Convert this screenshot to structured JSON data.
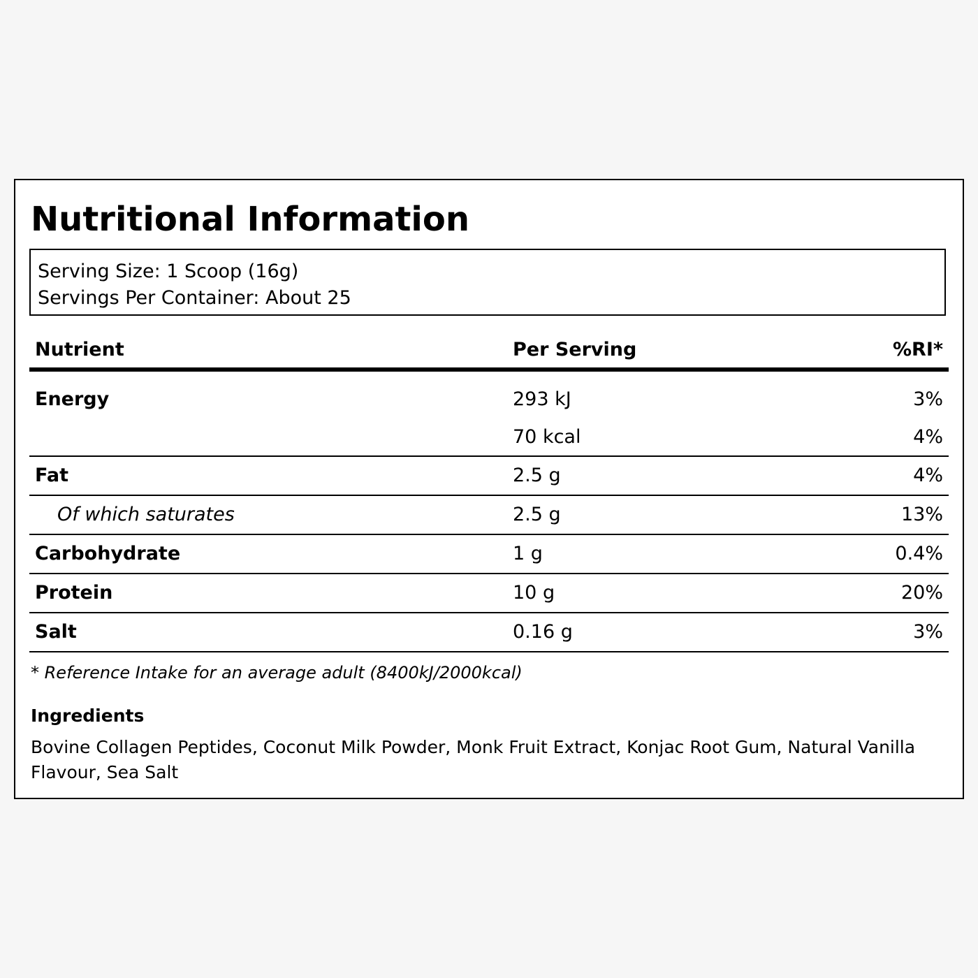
{
  "label": {
    "title": "Nutritional Information",
    "serving_size": "Serving Size: 1 Scoop (16g)",
    "servings_per_container": "Servings Per Container: About 25"
  },
  "table": {
    "headers": {
      "nutrient": "Nutrient",
      "per_serving": "Per Serving",
      "ri": "%RI*"
    },
    "rows": [
      {
        "name": "Energy",
        "amount": "293 kJ",
        "ri": "3%"
      },
      {
        "name": "",
        "amount": "70 kcal",
        "ri": "4%"
      },
      {
        "name": "Fat",
        "amount": "2.5 g",
        "ri": "4%"
      },
      {
        "name": "Of which saturates",
        "amount": "2.5 g",
        "ri": "13%"
      },
      {
        "name": "Carbohydrate",
        "amount": "1 g",
        "ri": "0.4%"
      },
      {
        "name": "Protein",
        "amount": "10 g",
        "ri": "20%"
      },
      {
        "name": "Salt",
        "amount": "0.16 g",
        "ri": "3%"
      }
    ]
  },
  "footnote": "* Reference Intake for an average adult (8400kJ/2000kcal)",
  "ingredients": {
    "heading": "Ingredients",
    "text": "Bovine Collagen Peptides, Coconut Milk Powder, Monk Fruit Extract, Konjac Root Gum, Natural Vanilla Flavour, Sea Salt"
  }
}
